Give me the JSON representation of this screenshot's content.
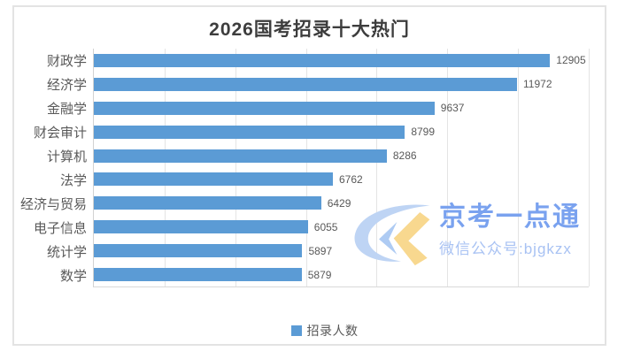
{
  "chart_data": {
    "type": "bar",
    "orientation": "horizontal",
    "title": "2026国考招录十大热门",
    "categories": [
      "财政学",
      "经济学",
      "金融学",
      "财会审计",
      "计算机",
      "法学",
      "经济与贸易",
      "电子信息",
      "统计学",
      "数学"
    ],
    "values": [
      12905,
      11972,
      9637,
      8799,
      8286,
      6762,
      6429,
      6055,
      5897,
      5879
    ],
    "series_name": "招录人数",
    "xlabel": "",
    "ylabel": "",
    "xlim": [
      0,
      14000
    ],
    "gridline_step": 2000,
    "grid": "vertical-only",
    "legend_position": "bottom-center",
    "data_labels": "end-of-bar",
    "bar_color": "#5b9bd5"
  },
  "watermark": {
    "brand": "京考一点通",
    "subtitle": "微信公众号:bjgkzx",
    "logo": "ck-monogram",
    "brand_color": "#7aa2ef",
    "subtitle_color": "#a8c2f3",
    "logo_blue": "#bed4f4",
    "logo_yellow": "#f8d88f"
  },
  "styles": {
    "background": "#ffffff",
    "frame_border_color": "#e3e3e3",
    "title_color": "#3d3d3d",
    "label_color": "#595959",
    "gridline_color": "#e4e4e4",
    "axis_color": "#d2d2d2"
  }
}
